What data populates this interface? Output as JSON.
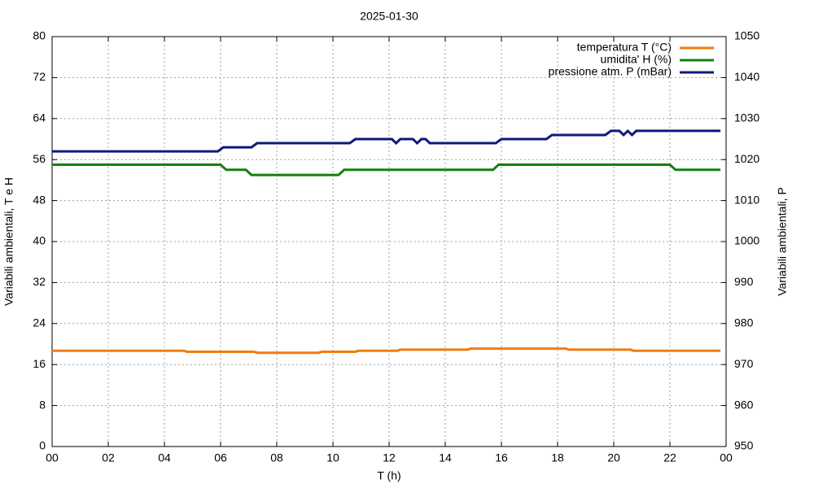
{
  "chart_data": {
    "type": "line",
    "title": "2025-01-30",
    "x_label": "T (h)",
    "y_label": "Variabili ambientali, T e H",
    "y2_label": "Variabili ambientali, P",
    "xlim": [
      0,
      24
    ],
    "xticks": [
      {
        "value": 0,
        "label": "00"
      },
      {
        "value": 2,
        "label": "02"
      },
      {
        "value": 4,
        "label": "04"
      },
      {
        "value": 6,
        "label": "06"
      },
      {
        "value": 8,
        "label": "08"
      },
      10,
      12,
      14,
      16,
      18,
      20,
      22,
      {
        "value": 24,
        "label": "00"
      }
    ],
    "ylim": [
      0,
      80
    ],
    "yticks": [
      0,
      8,
      16,
      24,
      32,
      40,
      48,
      56,
      64,
      72,
      80
    ],
    "y2lim": [
      950,
      1050
    ],
    "y2ticks": [
      950,
      960,
      970,
      980,
      990,
      1000,
      1010,
      1020,
      1030,
      1040,
      1050
    ],
    "grid": true,
    "legend": "top-right",
    "series": [
      {
        "name": "temperatura T (°C)",
        "color": "#f07c10",
        "axis": "y",
        "x": [
          0,
          4.7,
          4.8,
          7.2,
          7.3,
          9.5,
          9.6,
          10.8,
          10.9,
          12.3,
          12.4,
          14.8,
          14.9,
          18.3,
          18.4,
          20.6,
          20.7,
          23.8
        ],
        "values": [
          18.7,
          18.7,
          18.5,
          18.5,
          18.3,
          18.3,
          18.5,
          18.5,
          18.7,
          18.7,
          18.9,
          18.9,
          19.1,
          19.1,
          18.9,
          18.9,
          18.7,
          18.7
        ]
      },
      {
        "name": "umidita' H (%)",
        "color": "#13800f",
        "axis": "y",
        "x": [
          0,
          6.0,
          6.2,
          6.9,
          7.1,
          10.2,
          10.4,
          15.7,
          15.9,
          22.0,
          22.2,
          23.8
        ],
        "values": [
          55,
          55,
          54,
          54,
          53,
          53,
          54,
          54,
          55,
          55,
          54,
          54
        ]
      },
      {
        "name": "pressione atm. P (mBar)",
        "color": "#0c1a78",
        "axis": "y2",
        "x": [
          0,
          5.9,
          6.1,
          7.1,
          7.3,
          10.6,
          10.8,
          12.1,
          12.25,
          12.4,
          12.85,
          13.0,
          13.15,
          13.3,
          13.45,
          15.8,
          16.0,
          17.6,
          17.8,
          19.7,
          19.9,
          20.2,
          20.35,
          20.5,
          20.65,
          20.8,
          23.8
        ],
        "values": [
          1022,
          1022,
          1023,
          1023,
          1024,
          1024,
          1025,
          1025,
          1024,
          1025,
          1025,
          1024,
          1025,
          1025,
          1024,
          1024,
          1025,
          1025,
          1026,
          1026,
          1027,
          1027,
          1026,
          1027,
          1026,
          1027,
          1027
        ]
      }
    ]
  }
}
